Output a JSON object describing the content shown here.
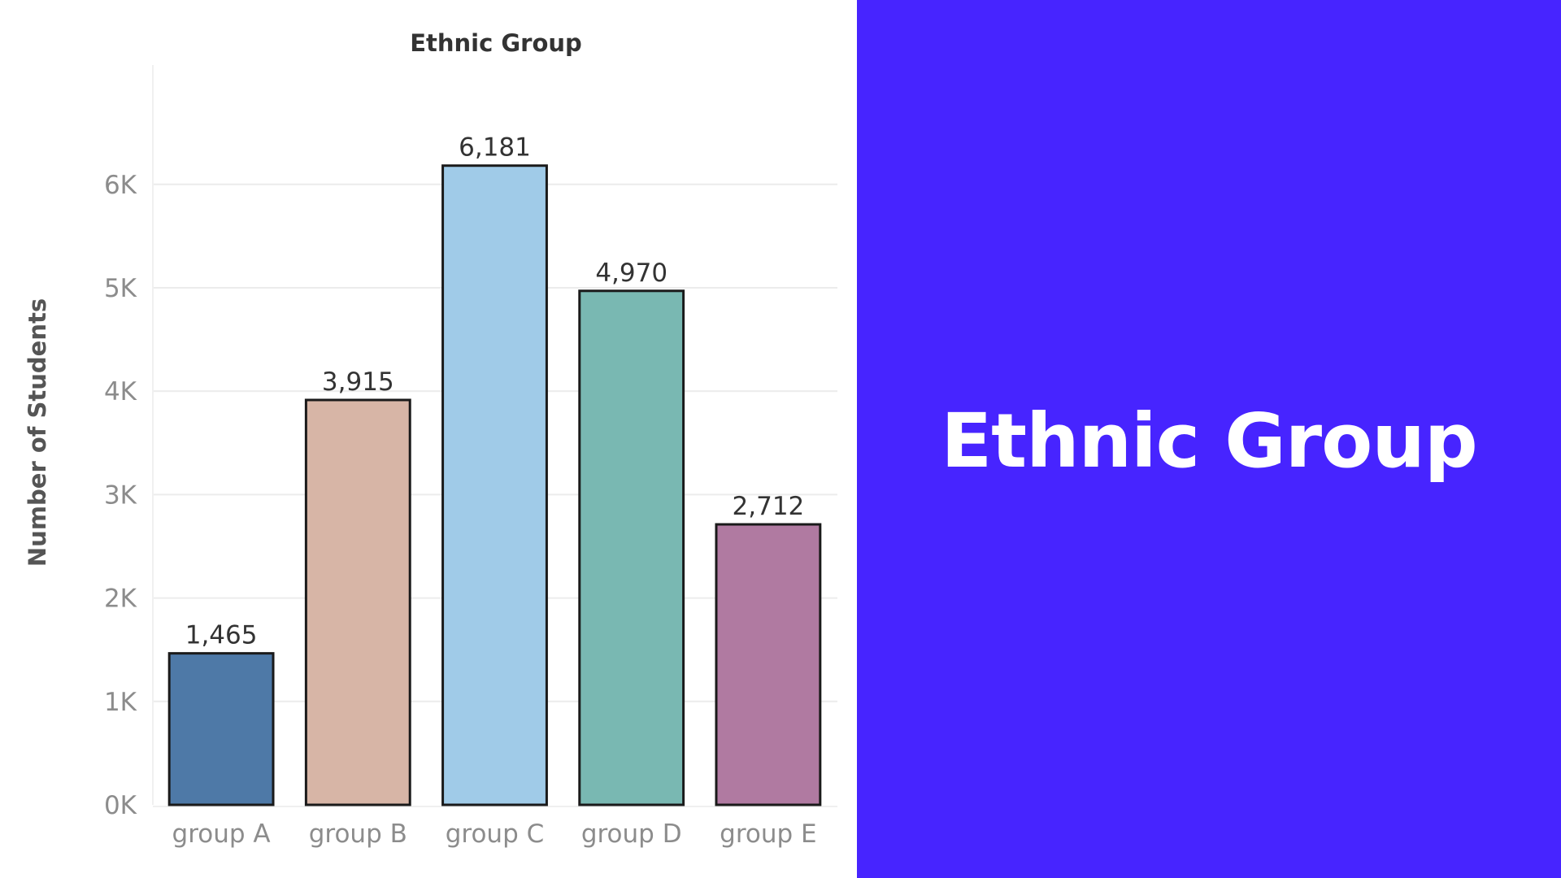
{
  "banner": {
    "title": "Ethnic Group",
    "background_color": "#4724ff",
    "text_color": "#ffffff"
  },
  "chart_data": {
    "type": "bar",
    "title": "Ethnic Group",
    "xlabel": "",
    "ylabel": "Number of Students",
    "categories": [
      "group A",
      "group B",
      "group C",
      "group D",
      "group E"
    ],
    "values": [
      1465,
      3915,
      6181,
      4970,
      2712
    ],
    "value_labels": [
      "1,465",
      "3,915",
      "6,181",
      "4,970",
      "2,712"
    ],
    "colors": [
      "#4e79a7",
      "#d7b5a6",
      "#a0cbe8",
      "#79b8b2",
      "#b07aa1"
    ],
    "ylim": [
      0,
      6800
    ],
    "y_ticks": [
      0,
      1000,
      2000,
      3000,
      4000,
      5000,
      6000
    ],
    "y_tick_labels": [
      "0K",
      "1K",
      "2K",
      "3K",
      "4K",
      "5K",
      "6K"
    ],
    "grid": true,
    "legend": "none"
  }
}
